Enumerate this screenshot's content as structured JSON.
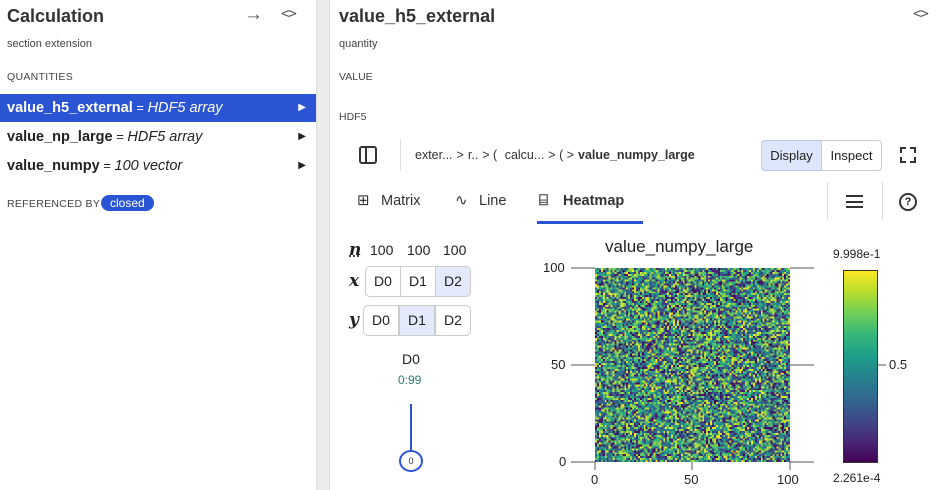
{
  "left_panel": {
    "title": "Calculation",
    "subtitle": "section extension",
    "section_label": "QUANTITIES",
    "quantities": [
      {
        "name": "value_h5_external",
        "eq": " = ",
        "type": "HDF5 array",
        "selected": true
      },
      {
        "name": "value_np_large",
        "eq": " =  ",
        "type": "HDF5 array",
        "selected": false
      },
      {
        "name": "value_numpy",
        "eq": " = ",
        "type": "100 vector",
        "selected": false
      }
    ],
    "referenced_by_label": "REFERENCED BY",
    "referenced_by_badge": "closed",
    "caret": "▶",
    "arrow_icon": "→",
    "code_icon": "<>"
  },
  "right_panel": {
    "title": "value_h5_external",
    "subtitle": "quantity",
    "value_label": "VALUE",
    "hdf5_label": "HDF5",
    "code_icon": "<>",
    "breadcrumb": [
      "exter...",
      "r..",
      "calcu...",
      "value_numpy_large"
    ],
    "display_label": "Display",
    "inspect_label": "Inspect",
    "tabs": [
      {
        "label": "Matrix",
        "icon": "⊞"
      },
      {
        "label": "Line",
        "icon": "∿"
      },
      {
        "label": "Heatmap",
        "icon": "⌸"
      }
    ],
    "help_icon": "?"
  },
  "dim_mapper": {
    "labels": {
      "n": "n",
      "x": "x",
      "y": "y"
    },
    "sizes": [
      "100",
      "100",
      "100"
    ],
    "x_buttons": [
      "D0",
      "D1",
      "D2"
    ],
    "x_active": 2,
    "y_buttons": [
      "D0",
      "D1",
      "D2"
    ],
    "y_active": 1,
    "slider_dim": "D0",
    "slider_range": "0:99",
    "slider_value": "0"
  },
  "chart_data": {
    "type": "heatmap",
    "title": "value_numpy_large",
    "x_ticks": [
      "0",
      "50",
      "100"
    ],
    "y_ticks": [
      "100",
      "50",
      "0"
    ],
    "xlim": [
      0,
      100
    ],
    "ylim": [
      0,
      100
    ],
    "colorbar": {
      "max": "9.998e-1",
      "mid": "0.5",
      "min": "2.261e-4",
      "colormap": "viridis"
    },
    "grid": false
  }
}
